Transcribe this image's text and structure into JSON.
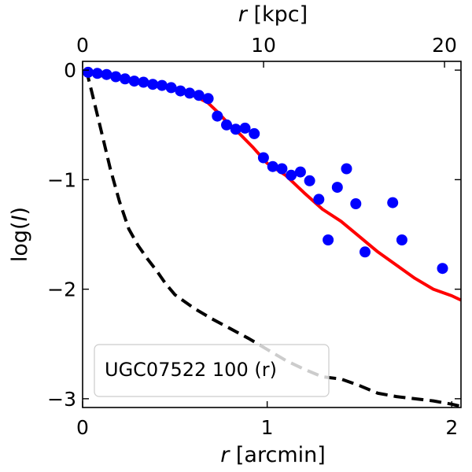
{
  "chart_data": {
    "type": "scatter",
    "title": "",
    "xlabel": "r [arcmin]",
    "xlabel_var": "r",
    "xlabel_unit": " [arcmin]",
    "ylabel": "log(I)",
    "ylabel_pre": "log(",
    "ylabel_var": "I",
    "ylabel_post": ")",
    "x2label": "r [kpc]",
    "x2label_var": "r",
    "x2label_unit": " [kpc]",
    "xlim": [
      0,
      2.05
    ],
    "ylim": [
      -3.08,
      0.08
    ],
    "x2_per_x": 10.2,
    "xticks": [
      0,
      1,
      2
    ],
    "xtick_labels": [
      "0",
      "1",
      "2"
    ],
    "yticks": [
      0,
      -1,
      -2,
      -3
    ],
    "ytick_labels": [
      "0",
      "−1",
      "−2",
      "−3"
    ],
    "x2ticks": [
      0,
      10,
      20
    ],
    "x2tick_labels": [
      "0",
      "10",
      "20"
    ],
    "legend": {
      "text": "UGC07522 100 (r)",
      "placement": "lower-left"
    },
    "colors": {
      "points": "#0000ff",
      "model": "#ff0000",
      "psf": "#000000"
    },
    "series": [
      {
        "name": "data",
        "kind": "points",
        "x": [
          0.03,
          0.08,
          0.13,
          0.18,
          0.23,
          0.28,
          0.33,
          0.38,
          0.43,
          0.48,
          0.53,
          0.58,
          0.63,
          0.68,
          0.73,
          0.78,
          0.83,
          0.88,
          0.93,
          0.98,
          1.03,
          1.08,
          1.13,
          1.18,
          1.23,
          1.28,
          1.33,
          1.38,
          1.43,
          1.48,
          1.53,
          1.68,
          1.73,
          1.95
        ],
        "y": [
          -0.02,
          -0.03,
          -0.04,
          -0.06,
          -0.08,
          -0.1,
          -0.11,
          -0.13,
          -0.14,
          -0.16,
          -0.19,
          -0.21,
          -0.23,
          -0.26,
          -0.42,
          -0.5,
          -0.54,
          -0.53,
          -0.58,
          -0.8,
          -0.88,
          -0.9,
          -0.96,
          -0.93,
          -1.01,
          -1.18,
          -1.55,
          -1.07,
          -0.9,
          -1.22,
          -1.66,
          -1.21,
          -1.55,
          -1.81
        ]
      },
      {
        "name": "model",
        "kind": "line",
        "x": [
          0.02,
          0.1,
          0.2,
          0.3,
          0.4,
          0.5,
          0.6,
          0.68,
          0.73,
          0.78,
          0.85,
          0.92,
          1.0,
          1.1,
          1.2,
          1.3,
          1.4,
          1.5,
          1.6,
          1.7,
          1.8,
          1.9,
          2.0,
          2.05
        ],
        "y": [
          0.0,
          -0.05,
          -0.07,
          -0.1,
          -0.13,
          -0.17,
          -0.23,
          -0.3,
          -0.38,
          -0.47,
          -0.58,
          -0.7,
          -0.85,
          -0.96,
          -1.12,
          -1.27,
          -1.38,
          -1.52,
          -1.66,
          -1.78,
          -1.9,
          -2.0,
          -2.06,
          -2.1
        ]
      },
      {
        "name": "psf",
        "kind": "line-dashed",
        "x": [
          0.02,
          0.05,
          0.1,
          0.15,
          0.2,
          0.25,
          0.3,
          0.35,
          0.4,
          0.45,
          0.5,
          0.6,
          0.7,
          0.8,
          0.9,
          1.0,
          1.1,
          1.2,
          1.3,
          1.4,
          1.5,
          1.6,
          1.7,
          1.8,
          1.9,
          2.0,
          2.05
        ],
        "y": [
          0.0,
          -0.2,
          -0.55,
          -0.9,
          -1.2,
          -1.45,
          -1.6,
          -1.72,
          -1.83,
          -1.95,
          -2.05,
          -2.17,
          -2.27,
          -2.36,
          -2.45,
          -2.55,
          -2.65,
          -2.73,
          -2.8,
          -2.82,
          -2.88,
          -2.95,
          -2.98,
          -3.0,
          -3.02,
          -3.05,
          -3.07
        ]
      }
    ]
  }
}
